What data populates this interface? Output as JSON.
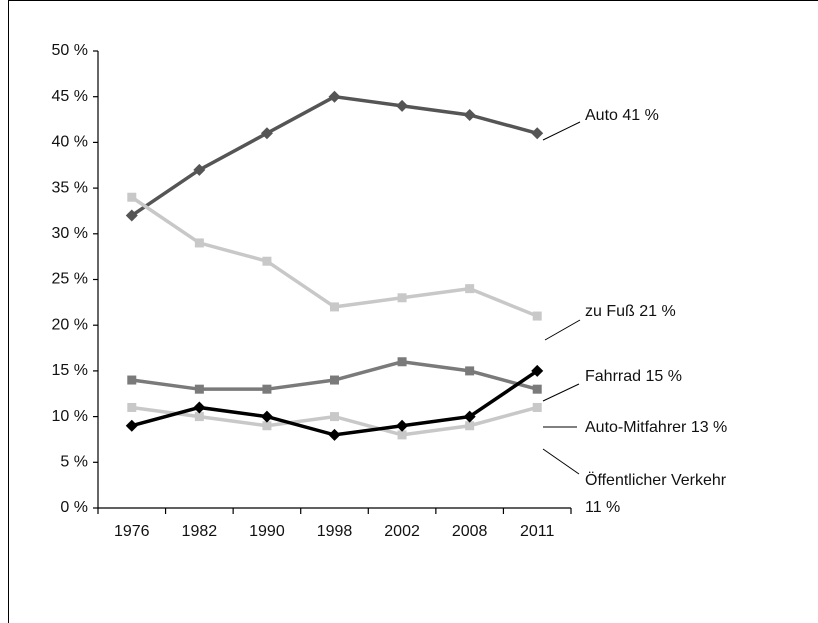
{
  "chart_data": {
    "type": "line",
    "categories": [
      "1976",
      "1982",
      "1990",
      "1998",
      "2002",
      "2008",
      "2011"
    ],
    "ylim": [
      0,
      50
    ],
    "yticks": [
      {
        "value": 0,
        "label": "0 %"
      },
      {
        "value": 5,
        "label": "5 %"
      },
      {
        "value": 10,
        "label": "10 %"
      },
      {
        "value": 15,
        "label": "15 %"
      },
      {
        "value": 20,
        "label": "20 %"
      },
      {
        "value": 25,
        "label": "25 %"
      },
      {
        "value": 30,
        "label": "30 %"
      },
      {
        "value": 35,
        "label": "35 %"
      },
      {
        "value": 40,
        "label": "40 %"
      },
      {
        "value": 45,
        "label": "45 %"
      },
      {
        "value": 50,
        "label": "50 %"
      }
    ],
    "series": [
      {
        "label": [
          "Auto  41 %"
        ],
        "color": "#555555",
        "marker": "diamond",
        "values": [
          32,
          37,
          41,
          45,
          44,
          43,
          41
        ]
      },
      {
        "label": [
          "zu Fuß  21 %"
        ],
        "color": "#c8c8c8",
        "marker": "square",
        "values": [
          34,
          29,
          27,
          22,
          23,
          24,
          21
        ]
      },
      {
        "label": [
          "Auto-Mitfahrer  13 %"
        ],
        "color": "#7a7a7a",
        "marker": "square",
        "values": [
          14,
          13,
          13,
          14,
          16,
          15,
          13
        ]
      },
      {
        "label": [
          "Öffentlicher Verkehr",
          "11 %"
        ],
        "color": "#c8c8c8",
        "marker": "square",
        "values": [
          11,
          10,
          9,
          10,
          8,
          9,
          11
        ]
      },
      {
        "label": [
          "Fahrrad  15 %"
        ],
        "color": "#000000",
        "marker": "diamond",
        "values": [
          9,
          11,
          10,
          8,
          9,
          10,
          15
        ]
      }
    ]
  }
}
